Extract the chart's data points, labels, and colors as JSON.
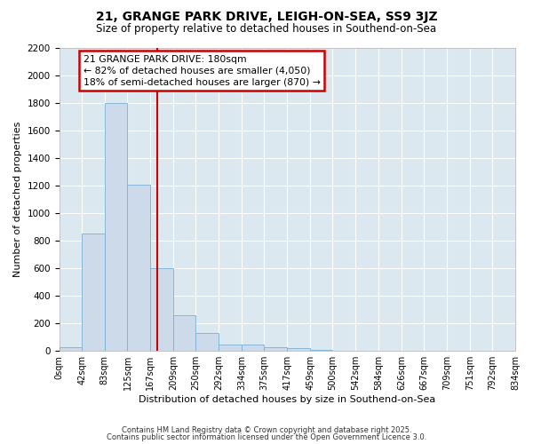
{
  "title": "21, GRANGE PARK DRIVE, LEIGH-ON-SEA, SS9 3JZ",
  "subtitle": "Size of property relative to detached houses in Southend-on-Sea",
  "xlabel": "Distribution of detached houses by size in Southend-on-Sea",
  "ylabel": "Number of detached properties",
  "bar_color": "#cddaea",
  "bar_edge_color": "#7aafd4",
  "bin_edges": [
    0,
    42,
    83,
    125,
    167,
    209,
    250,
    292,
    334,
    375,
    417,
    459,
    500,
    542,
    584,
    626,
    667,
    709,
    751,
    792,
    834
  ],
  "bin_labels": [
    "0sqm",
    "42sqm",
    "83sqm",
    "125sqm",
    "167sqm",
    "209sqm",
    "250sqm",
    "292sqm",
    "334sqm",
    "375sqm",
    "417sqm",
    "459sqm",
    "500sqm",
    "542sqm",
    "584sqm",
    "626sqm",
    "667sqm",
    "709sqm",
    "751sqm",
    "792sqm",
    "834sqm"
  ],
  "bar_heights": [
    25,
    850,
    1800,
    1210,
    600,
    260,
    130,
    45,
    45,
    30,
    20,
    5,
    0,
    0,
    0,
    0,
    0,
    0,
    0,
    0
  ],
  "property_size": 180,
  "vline_color": "#cc0000",
  "annotation_line1": "21 GRANGE PARK DRIVE: 180sqm",
  "annotation_line2": "← 82% of detached houses are smaller (4,050)",
  "annotation_line3": "18% of semi-detached houses are larger (870) →",
  "annotation_box_color": "#cc0000",
  "ylim": [
    0,
    2200
  ],
  "yticks": [
    0,
    200,
    400,
    600,
    800,
    1000,
    1200,
    1400,
    1600,
    1800,
    2000,
    2200
  ],
  "background_color": "#dce8f0",
  "grid_color": "#ffffff",
  "fig_bg_color": "#ffffff",
  "footer_line1": "Contains HM Land Registry data © Crown copyright and database right 2025.",
  "footer_line2": "Contains public sector information licensed under the Open Government Licence 3.0."
}
